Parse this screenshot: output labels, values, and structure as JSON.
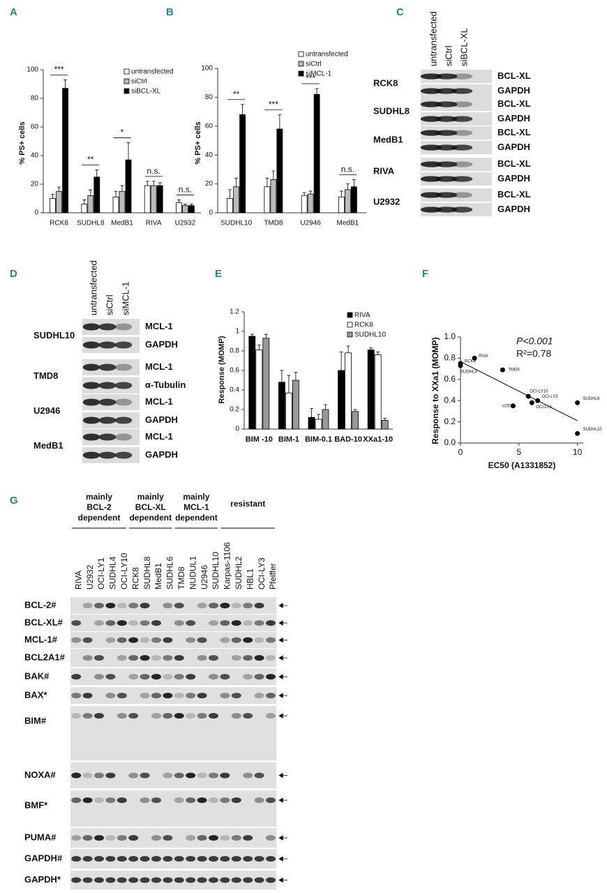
{
  "chart_data": [
    {
      "type": "bar",
      "label": "A",
      "ylabel": "% PS+ cells",
      "categories": [
        "RCK8",
        "SUDHL8",
        "MedB1",
        "RIVA",
        "U2932"
      ],
      "series": [
        {
          "name": "untransfected",
          "color": "#ffffff",
          "values": [
            10,
            6,
            11,
            19,
            7
          ],
          "errors": [
            3,
            3,
            4,
            3,
            2
          ]
        },
        {
          "name": "siCtrl",
          "color": "#bbbbbb",
          "values": [
            15,
            12,
            15,
            19,
            5
          ],
          "errors": [
            3,
            4,
            4,
            3,
            1
          ]
        },
        {
          "name": "siBCL-XL",
          "color": "#000000",
          "values": [
            87,
            25,
            37,
            19,
            5
          ],
          "errors": [
            6,
            5,
            12,
            2,
            1
          ]
        }
      ],
      "annotations": [
        "***",
        "**",
        "*",
        "n.s.",
        "n.s."
      ],
      "ylim": [
        0,
        100
      ],
      "yticks": [
        0,
        20,
        40,
        60,
        80,
        100
      ]
    },
    {
      "type": "bar",
      "label": "B",
      "ylabel": "% PS+ cells",
      "categories": [
        "SUDHL10",
        "TMD8",
        "U2946",
        "MedB1"
      ],
      "series": [
        {
          "name": "untransfected",
          "color": "#ffffff",
          "values": [
            10,
            18,
            12,
            11
          ],
          "errors": [
            6,
            6,
            2,
            4
          ]
        },
        {
          "name": "siCtrl",
          "color": "#bbbbbb",
          "values": [
            18,
            23,
            13,
            16
          ],
          "errors": [
            6,
            6,
            2,
            4
          ]
        },
        {
          "name": "siMCL-1",
          "color": "#000000",
          "values": [
            68,
            58,
            82,
            18
          ],
          "errors": [
            7,
            10,
            4,
            5
          ]
        }
      ],
      "annotations": [
        "**",
        "***",
        "***",
        "n.s."
      ],
      "ylim": [
        0,
        100
      ],
      "yticks": [
        0,
        20,
        40,
        60,
        80,
        100
      ]
    },
    {
      "type": "bar",
      "label": "E",
      "ylabel": "Response (MOMP)",
      "categories": [
        "BIM -10",
        "BIM-1",
        "BIM-0.1",
        "BAD-10",
        "XXa1-10"
      ],
      "series": [
        {
          "name": "RIVA",
          "color": "#000000",
          "values": [
            0.95,
            0.48,
            0.12,
            0.6,
            0.81
          ],
          "errors": [
            0.02,
            0.12,
            0.09,
            0.19,
            0.02
          ]
        },
        {
          "name": "RCK8",
          "color": "#ffffff",
          "values": [
            0.81,
            0.37,
            0.1,
            0.78,
            0.76
          ],
          "errors": [
            0.05,
            0.18,
            0.05,
            0.07,
            0.03
          ]
        },
        {
          "name": "SUDHL10",
          "color": "#999999",
          "values": [
            0.93,
            0.5,
            0.2,
            0.18,
            0.09
          ],
          "errors": [
            0.04,
            0.08,
            0.05,
            0.02,
            0.02
          ]
        }
      ],
      "ylim": [
        0,
        1.2
      ],
      "yticks": [
        0,
        0.2,
        0.4,
        0.6,
        0.8,
        1,
        1.2
      ]
    },
    {
      "type": "scatter",
      "label": "F",
      "ylabel": "Response to XXa1  (MOMP)",
      "xlabel": "EC50 (A1331852)",
      "annotations": [
        "P<0.001",
        "R²=0.78"
      ],
      "point_labels": [
        "RIVA",
        "RCK8",
        "SUDHL8",
        "TMD8",
        "U2932",
        "OCI-LY10",
        "OCI-LY3",
        "OCI-LY1",
        "SUDHL6",
        "SUDHL10"
      ],
      "x": [
        1.2,
        0,
        0,
        3.6,
        4.5,
        5.8,
        6.6,
        6.1,
        10,
        10
      ],
      "y": [
        0.8,
        0.75,
        0.73,
        0.69,
        0.35,
        0.44,
        0.4,
        0.38,
        0.38,
        0.09
      ],
      "color": "#000000",
      "xlim": [
        0,
        10.5
      ],
      "xticks": [
        0,
        5,
        10
      ],
      "ylim": [
        0,
        1
      ],
      "yticks": [
        {
          "value": 0,
          "label": "0.0"
        },
        {
          "value": 0.2,
          "label": "0.2"
        },
        {
          "value": 0.4,
          "label": "0.4"
        },
        {
          "value": 0.6,
          "label": "0.6"
        },
        {
          "value": 0.8,
          "label": "0.8"
        },
        {
          "value": 1,
          "label": "1.0"
        }
      ]
    }
  ],
  "blots": {
    "C": {
      "label": "C",
      "columns": [
        "untransfected",
        "siCtrl",
        "siBCL-XL"
      ],
      "rows": [
        {
          "cell": "RCK8",
          "bands": [
            "BCL-XL",
            "GAPDH"
          ]
        },
        {
          "cell": "SUDHL8",
          "bands": [
            "BCL-XL",
            "GAPDH"
          ]
        },
        {
          "cell": "MedB1",
          "bands": [
            "BCL-XL",
            "GAPDH"
          ]
        },
        {
          "cell": "RIVA",
          "bands": [
            "BCL-XL",
            "GAPDH"
          ]
        },
        {
          "cell": "U2932",
          "bands": [
            "BCL-XL",
            "GAPDH"
          ]
        }
      ]
    },
    "D": {
      "label": "D",
      "columns": [
        "untransfected",
        "siCtrl",
        "siMCL-1"
      ],
      "rows": [
        {
          "cell": "SUDHL10",
          "bands": [
            "MCL-1",
            "GAPDH"
          ]
        },
        {
          "cell": "TMD8",
          "bands": [
            "MCL-1",
            "α-Tubulin"
          ]
        },
        {
          "cell": "U2946",
          "bands": [
            "MCL-1",
            "GAPDH"
          ]
        },
        {
          "cell": "MedB1",
          "bands": [
            "MCL-1",
            "GAPDH"
          ]
        }
      ]
    },
    "G": {
      "label": "G",
      "groups": [
        [
          "mainly",
          "BCL-2",
          "dependent"
        ],
        [
          "mainly",
          "BCL-XL",
          "dependent"
        ],
        [
          "mainly",
          "MCL-1",
          "dependent"
        ],
        [
          "resistant"
        ]
      ],
      "lanes": [
        "RIVA",
        "U2932",
        "OCI-LY1",
        "SUDHL4",
        "OCI-LY10",
        "RCK8",
        "SUDHL8",
        "MedB1",
        "SUDHL6",
        "TMD8",
        "NUDUL1",
        "U2946",
        "SUDHL10",
        "Karpas-1106",
        "SUDHL2",
        "HBL1",
        "OCI-LY3",
        "Pfeiffer"
      ],
      "rows": [
        "BCL-2#",
        "BCL-XL#",
        "MCL-1#",
        "BCL2A1#",
        "BAK#",
        "BAX*",
        "BIM#",
        "NOXA#",
        "BMF*",
        "PUMA#",
        "GAPDH#",
        "GAPDH*"
      ]
    }
  }
}
